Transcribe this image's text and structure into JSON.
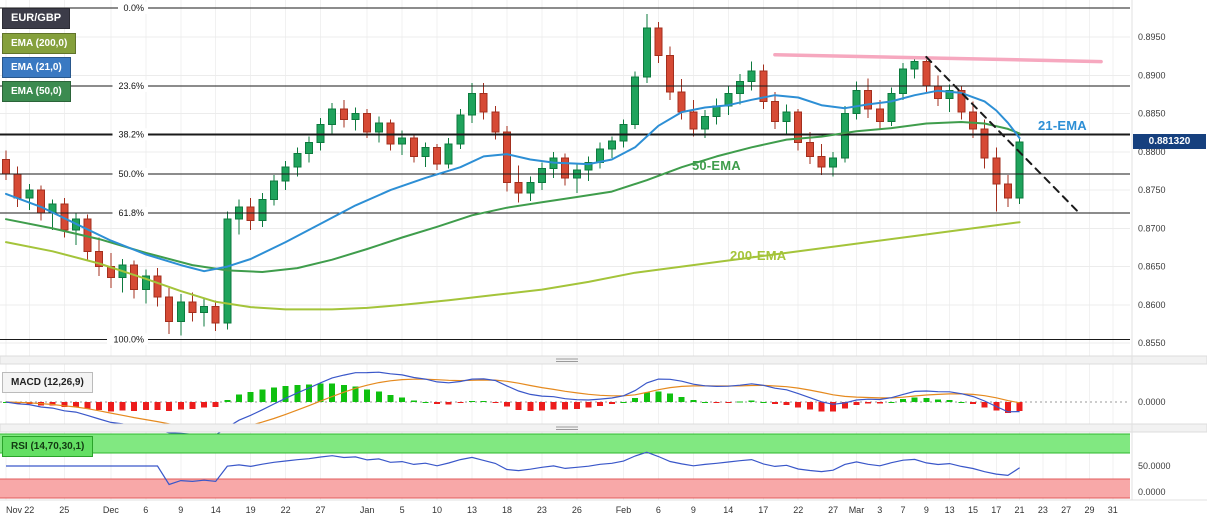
{
  "colors": {
    "background": "#ffffff",
    "grid": "#ececec",
    "axis_text": "#3c3c3c",
    "fib_line": "#1a1a1a",
    "up": "#1fa35c",
    "up_stroke": "#0d7a3e",
    "down": "#d64a35",
    "down_stroke": "#a32f1e",
    "ema21": "#2d8fd5",
    "ema50": "#3f9d4c",
    "ema200": "#a4c43a",
    "macd_line": "#3a57c9",
    "macd_signal": "#e58a1f",
    "hist_up": "#0fc00f",
    "hist_down": "#ec1c1c",
    "rsi_line": "#3a57c9",
    "rsi_upper_fill": "#81e881",
    "rsi_upper_edge": "#2eb82e",
    "rsi_lower_fill": "#f8a8a8",
    "rsi_lower_edge": "#e05c5c",
    "symbol_badge_bg": "#3c3c49",
    "ema200_badge_bg": "#85a03c",
    "ema21_badge_bg": "#3a79c2",
    "ema50_badge_bg": "#3c8b50",
    "macd_badge_bg": "#f4f4f4",
    "macd_badge_border": "#bbbbbb",
    "rsi_badge_bg": "#63df63",
    "rsi_badge_border": "#2aa32a",
    "price_badge_bg": "#16407e",
    "separator_bg": "#f2f2f2"
  },
  "legend": {
    "symbol": {
      "label": "EUR/GBP"
    },
    "items": [
      {
        "label": "EMA (200,0)"
      },
      {
        "label": "EMA (21,0)"
      },
      {
        "label": "EMA (50,0)"
      }
    ]
  },
  "annotations": {
    "ema21_text": "21-EMA",
    "ema50_text": "50-EMA",
    "ema200_text": "200-EMA"
  },
  "price_label": "0.881320",
  "chart_data": {
    "type": "candlestick",
    "symbol": "EUR/GBP",
    "last_price": 0.88132,
    "y_ticks": [
      "0.8950",
      "0.8900",
      "0.8850",
      "0.8800",
      "0.8750",
      "0.8700",
      "0.8650",
      "0.8600",
      "0.8550"
    ],
    "x_ticks": [
      {
        "i": 0,
        "t": "Nov"
      },
      {
        "i": 2,
        "t": "22"
      },
      {
        "i": 5,
        "t": "25"
      },
      {
        "i": 9,
        "t": "Dec"
      },
      {
        "i": 12,
        "t": "6"
      },
      {
        "i": 15,
        "t": "9"
      },
      {
        "i": 18,
        "t": "14"
      },
      {
        "i": 21,
        "t": "19"
      },
      {
        "i": 24,
        "t": "22"
      },
      {
        "i": 27,
        "t": "27"
      },
      {
        "i": 31,
        "t": "Jan"
      },
      {
        "i": 34,
        "t": "5"
      },
      {
        "i": 37,
        "t": "10"
      },
      {
        "i": 40,
        "t": "13"
      },
      {
        "i": 43,
        "t": "18"
      },
      {
        "i": 46,
        "t": "23"
      },
      {
        "i": 49,
        "t": "26"
      },
      {
        "i": 53,
        "t": "Feb"
      },
      {
        "i": 56,
        "t": "6"
      },
      {
        "i": 59,
        "t": "9"
      },
      {
        "i": 62,
        "t": "14"
      },
      {
        "i": 65,
        "t": "17"
      },
      {
        "i": 68,
        "t": "22"
      },
      {
        "i": 71,
        "t": "27"
      },
      {
        "i": 73,
        "t": "Mar"
      },
      {
        "i": 75,
        "t": "3"
      },
      {
        "i": 77,
        "t": "7"
      },
      {
        "i": 79,
        "t": "9"
      },
      {
        "i": 81,
        "t": "13"
      },
      {
        "i": 83,
        "t": "15"
      },
      {
        "i": 85,
        "t": "17"
      },
      {
        "i": 87,
        "t": "21"
      },
      {
        "i": 89,
        "t": "23"
      },
      {
        "i": 91,
        "t": "27"
      },
      {
        "i": 93,
        "t": "29"
      },
      {
        "i": 95,
        "t": "31"
      }
    ],
    "fib_levels": [
      {
        "label": "0.0%",
        "price": 0.8988
      },
      {
        "label": "23.6%",
        "price": 0.8886
      },
      {
        "label": "38.2%",
        "price": 0.8823
      },
      {
        "label": "50.0%",
        "price": 0.8771
      },
      {
        "label": "61.8%",
        "price": 0.872
      },
      {
        "label": "100.0%",
        "price": 0.8555
      }
    ],
    "candles": [
      [
        "Nov 18",
        0.879,
        0.8802,
        0.8763,
        0.8771
      ],
      [
        "Nov 21",
        0.8771,
        0.8781,
        0.8728,
        0.874
      ],
      [
        "Nov 22",
        0.874,
        0.8758,
        0.8724,
        0.875
      ],
      [
        "Nov 23",
        0.875,
        0.8756,
        0.871,
        0.872
      ],
      [
        "Nov 24",
        0.872,
        0.8738,
        0.8698,
        0.8732
      ],
      [
        "Nov 25",
        0.8732,
        0.874,
        0.8688,
        0.8698
      ],
      [
        "Nov 28",
        0.8698,
        0.872,
        0.8678,
        0.8712
      ],
      [
        "Nov 29",
        0.8712,
        0.8718,
        0.8658,
        0.867
      ],
      [
        "Nov 30",
        0.867,
        0.8688,
        0.8638,
        0.865
      ],
      [
        "Dec 1",
        0.865,
        0.8668,
        0.8622,
        0.8636
      ],
      [
        "Dec 2",
        0.8636,
        0.866,
        0.8616,
        0.8652
      ],
      [
        "Dec 5",
        0.8652,
        0.8658,
        0.8608,
        0.862
      ],
      [
        "Dec 6",
        0.862,
        0.8646,
        0.8602,
        0.8638
      ],
      [
        "Dec 7",
        0.8638,
        0.8648,
        0.8598,
        0.861
      ],
      [
        "Dec 8",
        0.861,
        0.8622,
        0.8562,
        0.8578
      ],
      [
        "Dec 9",
        0.8578,
        0.8614,
        0.856,
        0.8604
      ],
      [
        "Dec 12",
        0.8604,
        0.8616,
        0.8578,
        0.859
      ],
      [
        "Dec 13",
        0.859,
        0.8608,
        0.8572,
        0.8598
      ],
      [
        "Dec 14",
        0.8598,
        0.8606,
        0.8566,
        0.8576
      ],
      [
        "Dec 15",
        0.8576,
        0.8722,
        0.8568,
        0.8712
      ],
      [
        "Dec 16",
        0.8712,
        0.8738,
        0.8692,
        0.8728
      ],
      [
        "Dec 19",
        0.8728,
        0.874,
        0.8698,
        0.871
      ],
      [
        "Dec 20",
        0.871,
        0.8746,
        0.8702,
        0.8738
      ],
      [
        "Dec 21",
        0.8738,
        0.877,
        0.873,
        0.8762
      ],
      [
        "Dec 22",
        0.8762,
        0.8788,
        0.875,
        0.878
      ],
      [
        "Dec 23",
        0.878,
        0.8806,
        0.8768,
        0.8798
      ],
      [
        "Dec 26",
        0.8798,
        0.882,
        0.8786,
        0.8812
      ],
      [
        "Dec 27",
        0.8812,
        0.8844,
        0.8802,
        0.8836
      ],
      [
        "Dec 28",
        0.8836,
        0.8864,
        0.8824,
        0.8856
      ],
      [
        "Dec 29",
        0.8856,
        0.8868,
        0.8832,
        0.8842
      ],
      [
        "Dec 30",
        0.8842,
        0.8858,
        0.8828,
        0.885
      ],
      [
        "Jan 2",
        0.885,
        0.8856,
        0.8818,
        0.8826
      ],
      [
        "Jan 3",
        0.8826,
        0.8846,
        0.8812,
        0.8838
      ],
      [
        "Jan 4",
        0.8838,
        0.8842,
        0.8802,
        0.881
      ],
      [
        "Jan 5",
        0.881,
        0.8828,
        0.8796,
        0.8818
      ],
      [
        "Jan 6",
        0.8818,
        0.8822,
        0.8786,
        0.8794
      ],
      [
        "Jan 9",
        0.8794,
        0.8812,
        0.878,
        0.8806
      ],
      [
        "Jan 10",
        0.8806,
        0.881,
        0.8776,
        0.8784
      ],
      [
        "Jan 11",
        0.8784,
        0.8818,
        0.8778,
        0.881
      ],
      [
        "Jan 12",
        0.881,
        0.8856,
        0.8804,
        0.8848
      ],
      [
        "Jan 13",
        0.8848,
        0.889,
        0.8838,
        0.8876
      ],
      [
        "Jan 16",
        0.8876,
        0.889,
        0.8842,
        0.8852
      ],
      [
        "Jan 17",
        0.8852,
        0.886,
        0.8816,
        0.8826
      ],
      [
        "Jan 18",
        0.8826,
        0.8834,
        0.8748,
        0.876
      ],
      [
        "Jan 19",
        0.876,
        0.8782,
        0.8734,
        0.8746
      ],
      [
        "Jan 20",
        0.8746,
        0.8768,
        0.8736,
        0.876
      ],
      [
        "Jan 23",
        0.876,
        0.8786,
        0.875,
        0.8778
      ],
      [
        "Jan 24",
        0.8778,
        0.88,
        0.8766,
        0.8792
      ],
      [
        "Jan 25",
        0.8792,
        0.8798,
        0.8756,
        0.8766
      ],
      [
        "Jan 26",
        0.8766,
        0.8784,
        0.8746,
        0.8776
      ],
      [
        "Jan 27",
        0.8776,
        0.8794,
        0.8762,
        0.8786
      ],
      [
        "Jan 30",
        0.8786,
        0.8812,
        0.8778,
        0.8804
      ],
      [
        "Jan 31",
        0.8804,
        0.882,
        0.8792,
        0.8814
      ],
      [
        "Feb 1",
        0.8814,
        0.8842,
        0.8806,
        0.8836
      ],
      [
        "Feb 2",
        0.8836,
        0.8905,
        0.883,
        0.8898
      ],
      [
        "Feb 3",
        0.8898,
        0.898,
        0.889,
        0.8962
      ],
      [
        "Feb 6",
        0.8962,
        0.897,
        0.8916,
        0.8926
      ],
      [
        "Feb 7",
        0.8926,
        0.8938,
        0.8868,
        0.8878
      ],
      [
        "Feb 8",
        0.8878,
        0.8895,
        0.8842,
        0.8852
      ],
      [
        "Feb 9",
        0.8852,
        0.8868,
        0.882,
        0.883
      ],
      [
        "Feb 10",
        0.883,
        0.8855,
        0.8818,
        0.8846
      ],
      [
        "Feb 13",
        0.8846,
        0.887,
        0.8836,
        0.886
      ],
      [
        "Feb 14",
        0.886,
        0.8886,
        0.8848,
        0.8876
      ],
      [
        "Feb 15",
        0.8876,
        0.8902,
        0.8862,
        0.8892
      ],
      [
        "Feb 16",
        0.8892,
        0.8918,
        0.888,
        0.8906
      ],
      [
        "Feb 17",
        0.8906,
        0.8914,
        0.8856,
        0.8866
      ],
      [
        "Feb 20",
        0.8866,
        0.8878,
        0.883,
        0.884
      ],
      [
        "Feb 21",
        0.884,
        0.8862,
        0.8824,
        0.8852
      ],
      [
        "Feb 22",
        0.8852,
        0.8856,
        0.8802,
        0.8812
      ],
      [
        "Feb 23",
        0.8812,
        0.8826,
        0.8784,
        0.8794
      ],
      [
        "Feb 24",
        0.8794,
        0.881,
        0.877,
        0.878
      ],
      [
        "Feb 27",
        0.878,
        0.88,
        0.8768,
        0.8792
      ],
      [
        "Feb 28",
        0.8792,
        0.886,
        0.8786,
        0.885
      ],
      [
        "Mar 1",
        0.885,
        0.8892,
        0.8842,
        0.888
      ],
      [
        "Mar 2",
        0.888,
        0.8896,
        0.8844,
        0.8856
      ],
      [
        "Mar 3",
        0.8856,
        0.8868,
        0.883,
        0.884
      ],
      [
        "Mar 6",
        0.884,
        0.8884,
        0.8834,
        0.8876
      ],
      [
        "Mar 7",
        0.8876,
        0.8916,
        0.8868,
        0.8908
      ],
      [
        "Mar 8",
        0.8908,
        0.8924,
        0.8896,
        0.8918
      ],
      [
        "Mar 9",
        0.8918,
        0.8922,
        0.8876,
        0.8886
      ],
      [
        "Mar 10",
        0.8886,
        0.89,
        0.886,
        0.887
      ],
      [
        "Mar 13",
        0.887,
        0.8888,
        0.8852,
        0.888
      ],
      [
        "Mar 14",
        0.888,
        0.8886,
        0.8842,
        0.8852
      ],
      [
        "Mar 15",
        0.8852,
        0.8866,
        0.8818,
        0.883
      ],
      [
        "Mar 16",
        0.883,
        0.8842,
        0.8778,
        0.8792
      ],
      [
        "Mar 17",
        0.8792,
        0.8806,
        0.8722,
        0.8758
      ],
      [
        "Mar 20",
        0.8758,
        0.877,
        0.8728,
        0.874
      ],
      [
        "Mar 21",
        0.874,
        0.8818,
        0.8732,
        0.8813
      ]
    ],
    "ema21_points": [
      [
        0,
        0.8745
      ],
      [
        3,
        0.8728
      ],
      [
        6,
        0.8706
      ],
      [
        9,
        0.8684
      ],
      [
        12,
        0.8666
      ],
      [
        15,
        0.8652
      ],
      [
        17,
        0.8644
      ],
      [
        19,
        0.865
      ],
      [
        21,
        0.866
      ],
      [
        24,
        0.8682
      ],
      [
        27,
        0.8706
      ],
      [
        30,
        0.873
      ],
      [
        33,
        0.875
      ],
      [
        36,
        0.8766
      ],
      [
        39,
        0.878
      ],
      [
        41,
        0.8794
      ],
      [
        43,
        0.8797
      ],
      [
        45,
        0.879
      ],
      [
        47,
        0.8786
      ],
      [
        50,
        0.8784
      ],
      [
        52,
        0.879
      ],
      [
        54,
        0.8806
      ],
      [
        56,
        0.8834
      ],
      [
        58,
        0.8852
      ],
      [
        60,
        0.8858
      ],
      [
        62,
        0.8861
      ],
      [
        64,
        0.8868
      ],
      [
        66,
        0.8874
      ],
      [
        68,
        0.8871
      ],
      [
        70,
        0.8861
      ],
      [
        72,
        0.8857
      ],
      [
        74,
        0.8862
      ],
      [
        76,
        0.8866
      ],
      [
        78,
        0.8874
      ],
      [
        80,
        0.888
      ],
      [
        82,
        0.8877
      ],
      [
        84,
        0.8866
      ],
      [
        85,
        0.8854
      ],
      [
        86,
        0.8838
      ],
      [
        87,
        0.8818
      ]
    ],
    "ema50_points": [
      [
        0,
        0.8712
      ],
      [
        4,
        0.87
      ],
      [
        8,
        0.8686
      ],
      [
        12,
        0.8668
      ],
      [
        16,
        0.8652
      ],
      [
        19,
        0.8645
      ],
      [
        22,
        0.8643
      ],
      [
        25,
        0.8648
      ],
      [
        28,
        0.8659
      ],
      [
        31,
        0.8673
      ],
      [
        34,
        0.8688
      ],
      [
        37,
        0.8702
      ],
      [
        40,
        0.8717
      ],
      [
        43,
        0.8727
      ],
      [
        46,
        0.8734
      ],
      [
        49,
        0.8741
      ],
      [
        52,
        0.8748
      ],
      [
        55,
        0.8763
      ],
      [
        58,
        0.878
      ],
      [
        61,
        0.8794
      ],
      [
        64,
        0.8806
      ],
      [
        67,
        0.8816
      ],
      [
        70,
        0.882
      ],
      [
        73,
        0.8827
      ],
      [
        76,
        0.8831
      ],
      [
        79,
        0.8837
      ],
      [
        82,
        0.8839
      ],
      [
        84,
        0.8837
      ],
      [
        86,
        0.883
      ],
      [
        87,
        0.8824
      ]
    ],
    "ema200_points": [
      [
        0,
        0.8682
      ],
      [
        4,
        0.867
      ],
      [
        8,
        0.8654
      ],
      [
        12,
        0.8634
      ],
      [
        15,
        0.8618
      ],
      [
        18,
        0.8604
      ],
      [
        21,
        0.8597
      ],
      [
        24,
        0.8594
      ],
      [
        28,
        0.8594
      ],
      [
        31,
        0.8596
      ],
      [
        34,
        0.86
      ],
      [
        38,
        0.8606
      ],
      [
        42,
        0.8613
      ],
      [
        46,
        0.862
      ],
      [
        50,
        0.863
      ],
      [
        54,
        0.8642
      ],
      [
        58,
        0.865
      ],
      [
        62,
        0.8658
      ],
      [
        66,
        0.8666
      ],
      [
        70,
        0.8674
      ],
      [
        74,
        0.8682
      ],
      [
        78,
        0.869
      ],
      [
        81,
        0.8696
      ],
      [
        84,
        0.8702
      ],
      [
        87,
        0.8708
      ]
    ],
    "trendlines": [
      {
        "name": "resistance-trendline-pink",
        "color": "#f6a8bf",
        "width": 3.5,
        "from_index": 66,
        "from_price": 0.8927,
        "to_index": 94,
        "to_price": 0.8918,
        "dashed": false
      },
      {
        "name": "falling-trendline-dashed",
        "color": "#1a1a1a",
        "width": 2,
        "from_index": 79,
        "from_price": 0.8924,
        "to_index": 92,
        "to_price": 0.8722,
        "dashed": true
      }
    ],
    "indicators": {
      "macd": {
        "label": "MACD (12,26,9)",
        "fast": 12,
        "slow": 26,
        "signal": 9,
        "axis_labels": [
          "0.0000"
        ]
      },
      "rsi": {
        "label": "RSI (14,70,30,1)",
        "period": 14,
        "overbought": 70,
        "oversold": 30,
        "axis_labels": [
          "50.0000",
          "0.0000"
        ]
      }
    }
  }
}
